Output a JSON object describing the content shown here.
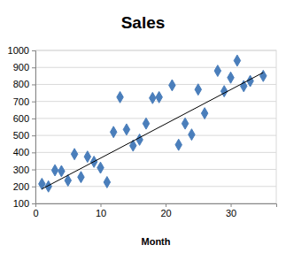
{
  "chart_data": {
    "type": "scatter",
    "title": "Sales",
    "xlabel": "Month",
    "series": [
      {
        "type": "scatter",
        "color": "#4a7ebb",
        "marker": "diamond",
        "x": [
          1,
          2,
          3,
          4,
          5,
          6,
          7,
          8,
          9,
          10,
          11,
          12,
          13,
          14,
          15,
          16,
          17,
          18,
          19,
          21,
          22,
          23,
          24,
          25,
          26,
          28,
          29,
          30,
          31,
          32,
          33,
          35
        ],
        "values": [
          215,
          200,
          295,
          290,
          235,
          390,
          255,
          375,
          345,
          310,
          225,
          520,
          725,
          535,
          440,
          475,
          570,
          720,
          725,
          795,
          445,
          570,
          505,
          770,
          630,
          880,
          760,
          840,
          940,
          790,
          820,
          850
        ]
      },
      {
        "type": "line",
        "color": "#000000",
        "line_style": "solid",
        "x": [
          1,
          35
        ],
        "values": [
          185,
          870
        ]
      }
    ],
    "xlim": [
      0,
      37
    ],
    "xticks": [
      0,
      10,
      20,
      30
    ],
    "ylim": [
      100,
      1000
    ],
    "yticks": [
      100,
      200,
      300,
      400,
      500,
      600,
      700,
      800,
      900,
      1000
    ],
    "grid": true
  }
}
